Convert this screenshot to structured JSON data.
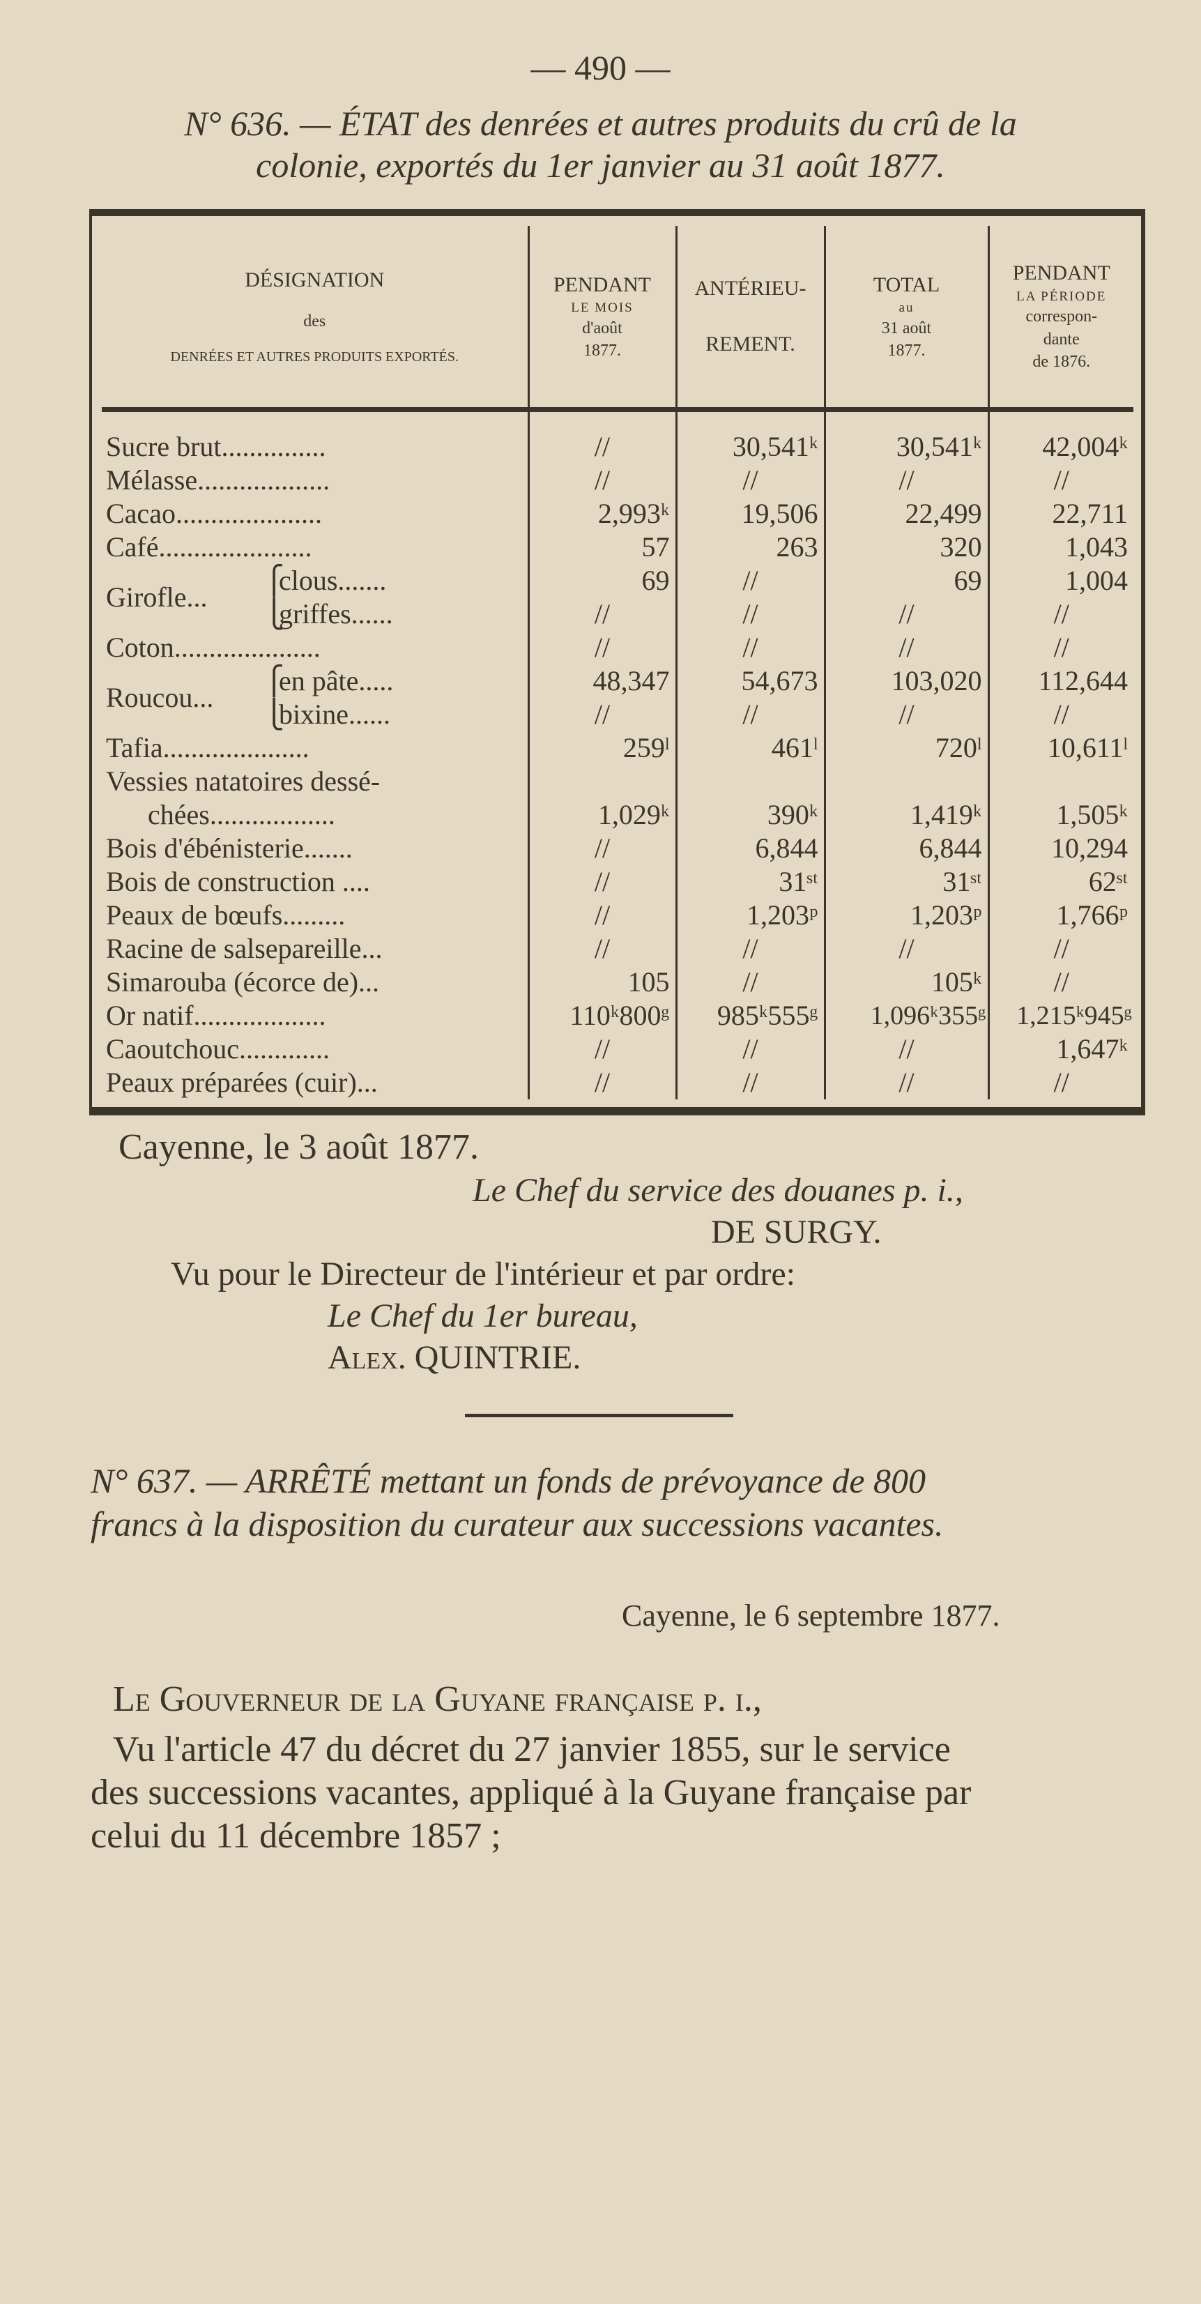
{
  "page_number": "— 490 —",
  "doc636": {
    "title_line1": "N° 636. — ÉTAT des denrées et autres produits du crû de la",
    "title_line2": "colonie, exportés du 1er janvier au 31 août 1877.",
    "table": {
      "headers": {
        "designation": [
          "DÉSIGNATION",
          "des",
          "DENRÉES ET AUTRES PRODUITS EXPORTÉS."
        ],
        "month": [
          "PENDANT",
          "LE MOIS",
          "d'août",
          "1877."
        ],
        "prior": [
          "ANTÉRIEU-",
          "REMENT."
        ],
        "total": [
          "TOTAL",
          "au",
          "31 août",
          "1877."
        ],
        "prev_year": [
          "PENDANT",
          "LA PÉRIODE",
          "correspon-",
          "dante",
          "de 1876."
        ]
      },
      "rows": [
        {
          "label": "Sucre brut...............",
          "values": [
            "//",
            "30,541ᵏ",
            "30,541ᵏ",
            "42,004ᵏ"
          ]
        },
        {
          "label": "Mélasse...................",
          "values": [
            "//",
            "//",
            "//",
            "//"
          ]
        },
        {
          "label": "Cacao.....................",
          "values": [
            "2,993ᵏ",
            "19,506",
            "22,499",
            "22,711"
          ]
        },
        {
          "label": "Café......................",
          "values": [
            "57",
            "263",
            "320",
            "1,043"
          ]
        },
        {
          "group": "Girofle...",
          "label": "clous.......",
          "values": [
            "69",
            "//",
            "69",
            "1,004"
          ]
        },
        {
          "group": "Girofle...",
          "label": "griffes......",
          "values": [
            "//",
            "//",
            "//",
            "//"
          ]
        },
        {
          "label": "Coton.....................",
          "values": [
            "//",
            "//",
            "//",
            "//"
          ]
        },
        {
          "group": "Roucou...",
          "label": "en pâte.....",
          "values": [
            "48,347",
            "54,673",
            "103,020",
            "112,644"
          ]
        },
        {
          "group": "Roucou...",
          "label": "bixine......",
          "values": [
            "//",
            "//",
            "//",
            "//"
          ]
        },
        {
          "label": "Tafia.....................",
          "values": [
            "259ˡ",
            "461ˡ",
            "720ˡ",
            "10,611ˡ"
          ]
        },
        {
          "label": "Vessies natatoires dessé-",
          "label2": "chées..................",
          "values": [
            "1,029ᵏ",
            "390ᵏ",
            "1,419ᵏ",
            "1,505ᵏ"
          ]
        },
        {
          "label": "Bois d'ébénisterie.......",
          "values": [
            "//",
            "6,844",
            "6,844",
            "10,294"
          ]
        },
        {
          "label": "Bois de construction ....",
          "values": [
            "//",
            "31ˢᵗ",
            "31ˢᵗ",
            "62ˢᵗ"
          ]
        },
        {
          "label": "Peaux de bœufs.........",
          "values": [
            "//",
            "1,203ᵖ",
            "1,203ᵖ",
            "1,766ᵖ"
          ]
        },
        {
          "label": "Racine de salsepareille...",
          "values": [
            "//",
            "//",
            "//",
            "//"
          ]
        },
        {
          "label": "Simarouba (écorce de)...",
          "values": [
            "105",
            "//",
            "105ᵏ",
            "//"
          ]
        },
        {
          "label": "Or natif...................",
          "values": [
            "110ᵏ800ᵍ",
            "985ᵏ555ᵍ",
            "1,096ᵏ355ᵍ",
            "1,215ᵏ945ᵍ"
          ]
        },
        {
          "label": "Caoutchouc.............",
          "values": [
            "//",
            "//",
            "//",
            "1,647ᵏ"
          ]
        },
        {
          "label": "Peaux préparées (cuir)...",
          "values": [
            "//",
            "//",
            "//",
            "//"
          ]
        }
      ]
    },
    "place_date": "Cayenne, le 3 août 1877.",
    "signer_title": "Le Chef du service des douanes p. i.,",
    "signer_name": "DE SURGY.",
    "approval": "Vu pour le Directeur de l'intérieur et par ordre:",
    "approver_title": "Le Chef du 1er bureau,",
    "approver_name": "Alex. QUINTRIE."
  },
  "doc637": {
    "title_line1": "N° 637. — ARRÊTÉ mettant un fonds de prévoyance de 800",
    "title_line2": "francs à la disposition du curateur aux successions vacantes.",
    "place_date": "Cayenne, le 6 septembre 1877.",
    "opening": "Le Gouverneur de la Guyane française p. i.,",
    "para_line1": "Vu l'article 47 du décret du 27 janvier 1855, sur le service",
    "para_line2": "des successions vacantes, appliqué à la Guyane française par",
    "para_line3": "celui du 11 décembre 1857 ;"
  }
}
